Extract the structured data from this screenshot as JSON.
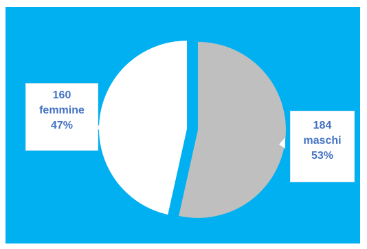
{
  "chart_data": {
    "type": "pie",
    "slices": [
      {
        "label": "maschi",
        "value": 184,
        "percent": "53%",
        "color": "#bfbfbf"
      },
      {
        "label": "femmine",
        "value": 160,
        "percent": "47%",
        "color": "#ffffff"
      }
    ],
    "background": "#00b0f0",
    "label_color": "#4472c4",
    "title": ""
  },
  "labels": {
    "femmine": {
      "value": "160",
      "name": "femmine",
      "percent": "47%"
    },
    "maschi": {
      "value": "184",
      "name": "maschi",
      "percent": "53%"
    }
  }
}
